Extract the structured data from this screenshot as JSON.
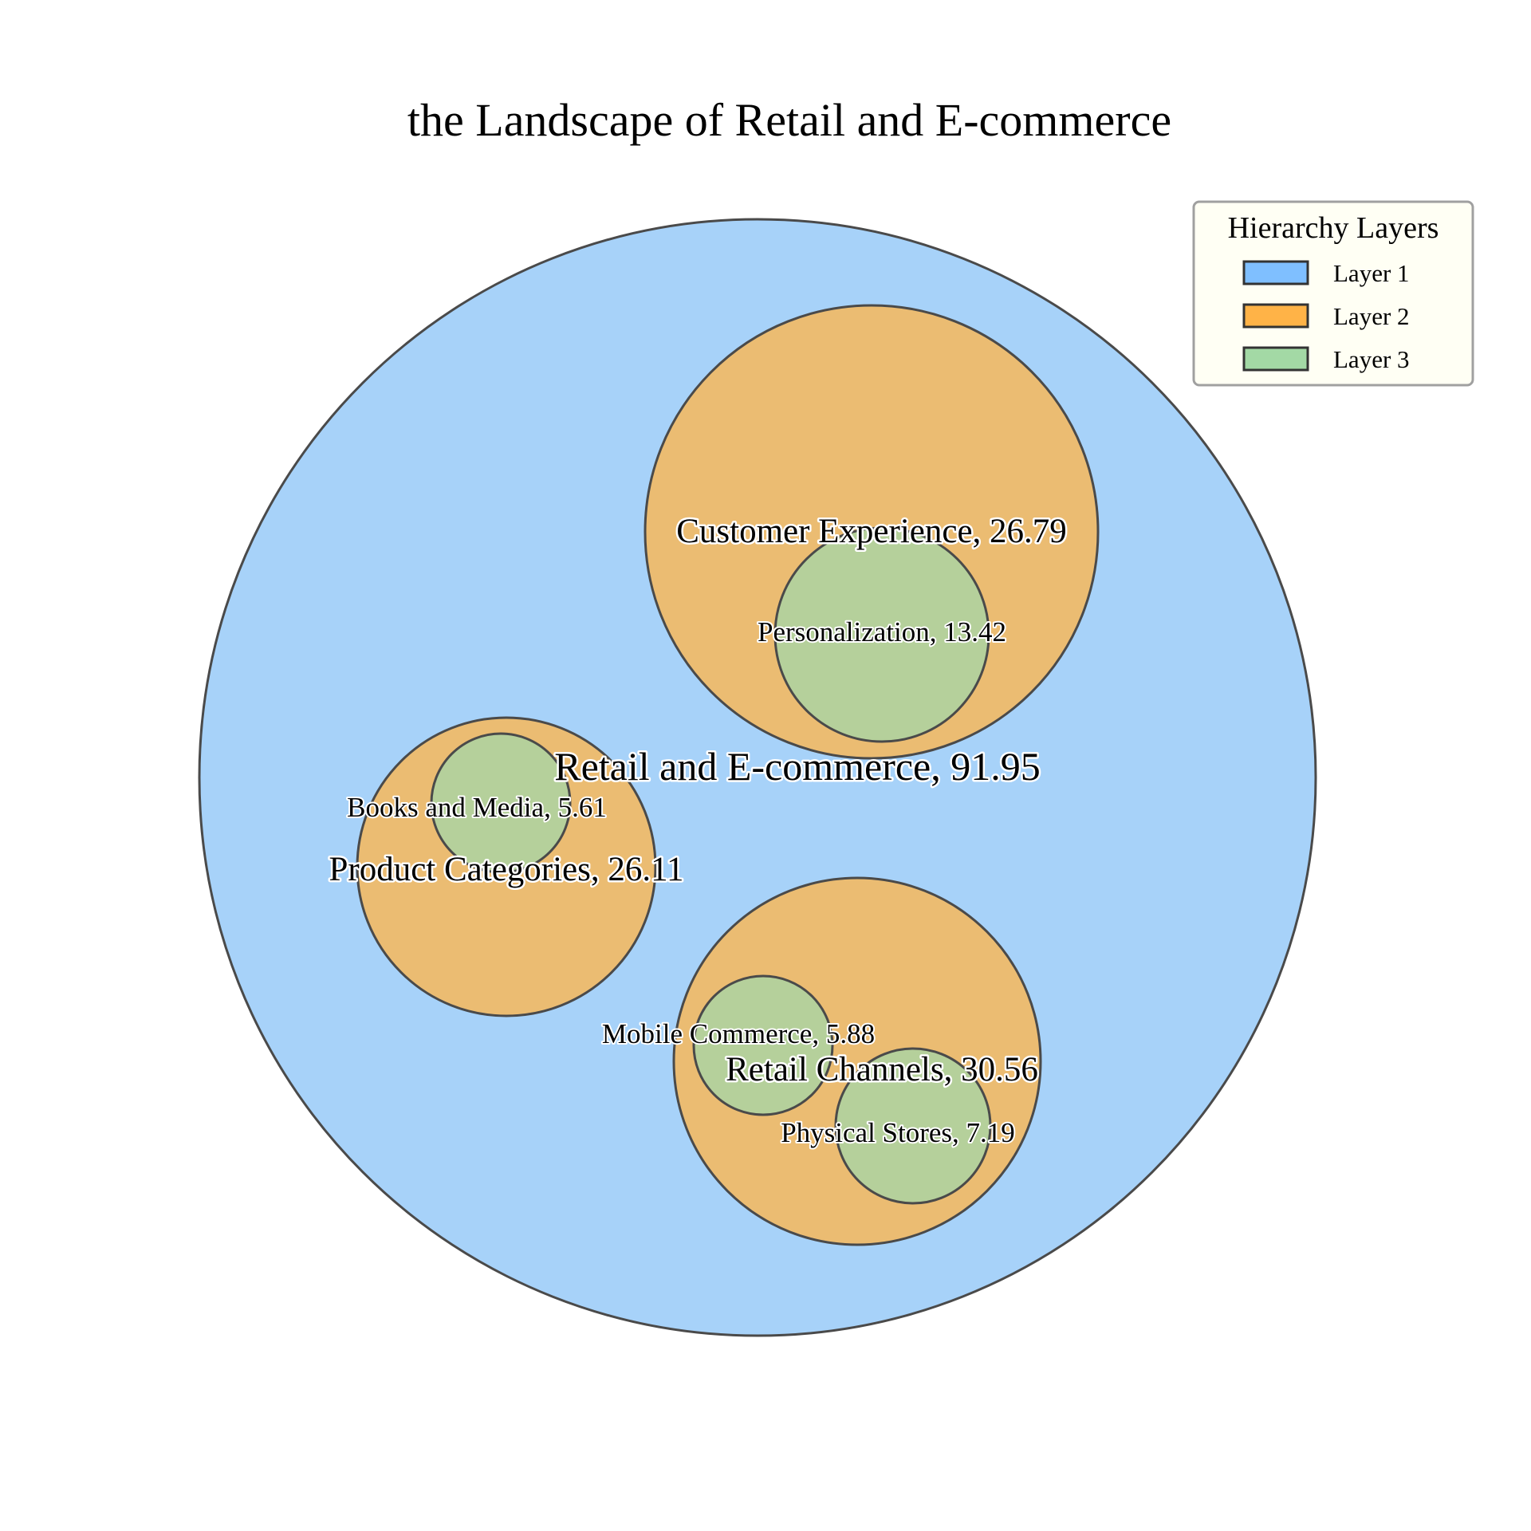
{
  "chart_data": {
    "type": "circle-packing",
    "title": "the Landscape of Retail and E-commerce",
    "legend": {
      "title": "Hierarchy Layers",
      "placement": "top-right",
      "entries": [
        {
          "label": "Layer 1",
          "color": "#7fbfff"
        },
        {
          "label": "Layer 2",
          "color": "#ffb347"
        },
        {
          "label": "Layer 3",
          "color": "#a3d9a5"
        }
      ]
    },
    "layer_colors": {
      "1": "#a7d2f9",
      "2": "#ebbc72",
      "3": "#b5d09b"
    },
    "nodes": [
      {
        "id": "root",
        "label": "Retail and E-commerce, 91.95",
        "name": "Retail and E-commerce",
        "value": 91.95,
        "layer": 1
      },
      {
        "id": "customer-experience",
        "label": "Customer Experience, 26.79",
        "name": "Customer Experience",
        "value": 26.79,
        "layer": 2,
        "parent": "root"
      },
      {
        "id": "personalization",
        "label": "Personalization, 13.42",
        "name": "Personalization",
        "value": 13.42,
        "layer": 3,
        "parent": "customer-experience"
      },
      {
        "id": "product-categories",
        "label": "Product Categories, 26.11",
        "name": "Product Categories",
        "value": 26.11,
        "layer": 2,
        "parent": "root"
      },
      {
        "id": "books-and-media",
        "label": "Books and Media, 5.61",
        "name": "Books and Media",
        "value": 5.61,
        "layer": 3,
        "parent": "product-categories"
      },
      {
        "id": "retail-channels",
        "label": "Retail Channels, 30.56",
        "name": "Retail Channels",
        "value": 30.56,
        "layer": 2,
        "parent": "root"
      },
      {
        "id": "mobile-commerce",
        "label": "Mobile Commerce, 5.88",
        "name": "Mobile Commerce",
        "value": 5.88,
        "layer": 3,
        "parent": "retail-channels"
      },
      {
        "id": "physical-stores",
        "label": "Physical Stores, 7.19",
        "name": "Physical Stores",
        "value": 7.19,
        "layer": 3,
        "parent": "retail-channels"
      }
    ]
  }
}
